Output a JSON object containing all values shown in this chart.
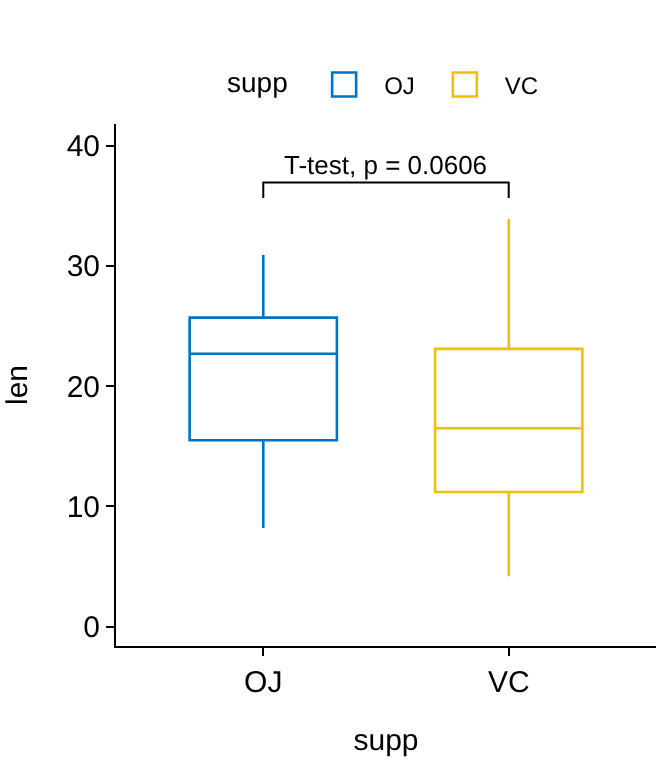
{
  "chart_data": {
    "type": "box",
    "xlabel": "supp",
    "ylabel": "len",
    "legend_title": "supp",
    "legend": "top",
    "categories": [
      "OJ",
      "VC"
    ],
    "series": [
      {
        "name": "OJ",
        "color": "#0073c2",
        "boxes": [
          {
            "low": 8.2,
            "q1": 15.5,
            "median": 22.7,
            "q3": 25.7,
            "high": 30.9
          },
          null
        ]
      },
      {
        "name": "VC",
        "color": "#efc000",
        "boxes": [
          null,
          {
            "low": 4.2,
            "q1": 11.2,
            "median": 16.5,
            "q3": 23.1,
            "high": 33.9
          }
        ]
      }
    ],
    "ylim": [
      -1.6,
      41.8
    ],
    "yticks": [
      0,
      10,
      20,
      30,
      40
    ],
    "annotations": [
      "T-test, p = 0.0606"
    ]
  }
}
